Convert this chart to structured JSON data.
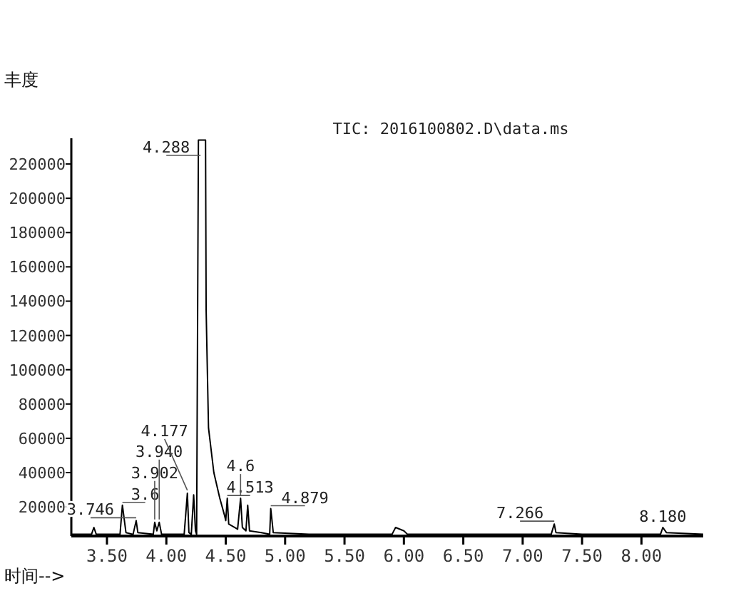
{
  "chart_data": {
    "type": "line",
    "title": "TIC: 2016100802.D\\data.ms",
    "xlabel": "时间-->",
    "ylabel": "丰度",
    "xlim": [
      3.2,
      8.52
    ],
    "ylim": [
      3000,
      235000
    ],
    "xticks": [
      {
        "value": 3.5,
        "label": "3.50"
      },
      {
        "value": 4,
        "label": "4.00"
      },
      {
        "value": 4.5,
        "label": "4.50"
      },
      {
        "value": 5,
        "label": "5.00"
      },
      {
        "value": 5.5,
        "label": "5.50"
      },
      {
        "value": 6,
        "label": "6.00"
      },
      {
        "value": 6.5,
        "label": "6.50"
      },
      {
        "value": 7,
        "label": "7.00"
      },
      {
        "value": 7.5,
        "label": "7.50"
      },
      {
        "value": 8,
        "label": "8.00"
      }
    ],
    "yticks": [
      20000,
      40000,
      60000,
      80000,
      100000,
      120000,
      140000,
      160000,
      180000,
      200000,
      220000
    ],
    "grid": false,
    "series": [
      {
        "color": "#000000",
        "x": [
          3.2,
          3.37,
          3.39,
          3.41,
          3.61,
          3.63,
          3.66,
          3.72,
          3.746,
          3.76,
          3.89,
          3.902,
          3.92,
          3.94,
          3.96,
          4.15,
          4.177,
          4.19,
          4.21,
          4.23,
          4.245,
          4.255,
          4.27,
          4.33,
          4.335,
          4.355,
          4.4,
          4.45,
          4.49,
          4.5,
          4.513,
          4.525,
          4.6,
          4.625,
          4.64,
          4.67,
          4.685,
          4.7,
          4.8,
          4.87,
          4.879,
          4.9,
          5.2,
          5.9,
          5.93,
          6.0,
          6.03,
          7.24,
          7.266,
          7.28,
          7.5,
          8.16,
          8.18,
          8.21,
          8.52
        ],
        "values": [
          4000,
          4000,
          8000,
          4000,
          4000,
          21000,
          5000,
          4000,
          12000,
          5000,
          4000,
          11000,
          6000,
          11000,
          4000,
          4000,
          28000,
          5000,
          4000,
          27000,
          6000,
          4000,
          234000,
          234000,
          135000,
          66000,
          40000,
          25000,
          15000,
          12000,
          25000,
          10000,
          7000,
          25000,
          8000,
          6000,
          21000,
          6000,
          5000,
          4000,
          19000,
          5000,
          4000,
          4000,
          8000,
          6000,
          4000,
          4000,
          10000,
          5000,
          4000,
          4000,
          8000,
          5000,
          4000
        ]
      }
    ],
    "annotations": [
      {
        "text": "4.288",
        "x": 4.288,
        "y": 234000
      },
      {
        "text": "4.513",
        "x": 4.513,
        "y": 25000
      },
      {
        "text": "3.746",
        "x": 3.746,
        "y": 12000
      },
      {
        "text": "3.6",
        "x": 3.63,
        "y": 21000
      },
      {
        "text": "3.902",
        "x": 3.902,
        "y": 11000
      },
      {
        "text": "3.940",
        "x": 3.94,
        "y": 11000
      },
      {
        "text": "4.177",
        "x": 4.177,
        "y": 28000
      },
      {
        "text": "4.6",
        "x": 4.625,
        "y": 25000
      },
      {
        "text": "4.879",
        "x": 4.879,
        "y": 19000
      },
      {
        "text": "7.266",
        "x": 7.266,
        "y": 10000
      },
      {
        "text": "8.180",
        "x": 8.18,
        "y": 8000
      }
    ]
  }
}
